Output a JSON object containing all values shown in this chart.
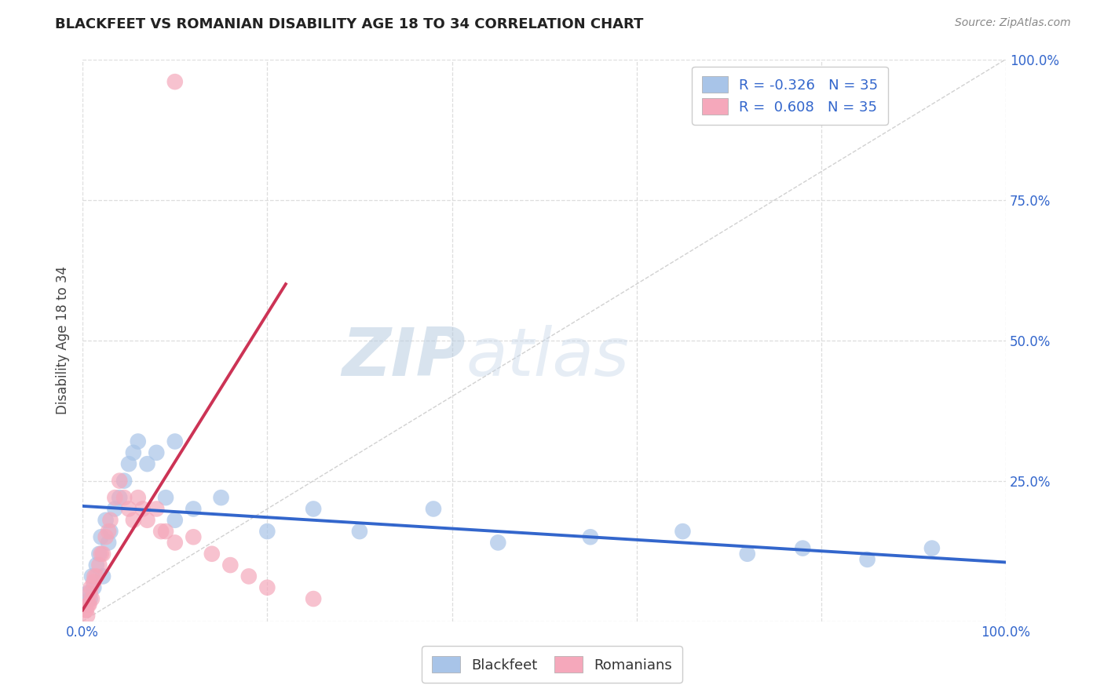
{
  "title": "BLACKFEET VS ROMANIAN DISABILITY AGE 18 TO 34 CORRELATION CHART",
  "source_text": "Source: ZipAtlas.com",
  "ylabel": "Disability Age 18 to 34",
  "blackfeet_R": -0.326,
  "blackfeet_N": 35,
  "romanian_R": 0.608,
  "romanian_N": 35,
  "blackfeet_color": "#a8c4e8",
  "romanian_color": "#f5a8bb",
  "blackfeet_line_color": "#3366cc",
  "romanian_line_color": "#cc3355",
  "ref_line_color": "#cccccc",
  "grid_color": "#dddddd",
  "watermark_zip": "ZIP",
  "watermark_atlas": "atlas",
  "xlim": [
    0,
    100
  ],
  "ylim": [
    0,
    100
  ],
  "blackfeet_x": [
    0.5,
    0.8,
    1.0,
    1.2,
    1.5,
    1.8,
    2.0,
    2.2,
    2.5,
    2.8,
    3.0,
    3.5,
    4.0,
    4.5,
    5.0,
    5.5,
    6.0,
    7.0,
    8.0,
    9.0,
    10.0,
    12.0,
    15.0,
    20.0,
    25.0,
    30.0,
    38.0,
    45.0,
    55.0,
    65.0,
    72.0,
    78.0,
    85.0,
    92.0,
    10.0
  ],
  "blackfeet_y": [
    5.0,
    4.0,
    8.0,
    6.0,
    10.0,
    12.0,
    15.0,
    8.0,
    18.0,
    14.0,
    16.0,
    20.0,
    22.0,
    25.0,
    28.0,
    30.0,
    32.0,
    28.0,
    30.0,
    22.0,
    18.0,
    20.0,
    22.0,
    16.0,
    20.0,
    16.0,
    20.0,
    14.0,
    15.0,
    16.0,
    12.0,
    13.0,
    11.0,
    13.0,
    32.0
  ],
  "romanian_x": [
    0.3,
    0.5,
    0.6,
    0.8,
    1.0,
    1.2,
    1.5,
    1.8,
    2.0,
    2.5,
    3.0,
    3.5,
    4.0,
    5.0,
    6.0,
    7.0,
    8.0,
    9.0,
    10.0,
    12.0,
    14.0,
    16.0,
    18.0,
    20.0,
    25.0,
    0.4,
    0.7,
    0.9,
    1.3,
    2.2,
    2.8,
    4.5,
    5.5,
    6.5,
    8.5
  ],
  "romanian_y": [
    2.0,
    1.0,
    3.0,
    5.0,
    4.0,
    7.0,
    8.0,
    10.0,
    12.0,
    15.0,
    18.0,
    22.0,
    25.0,
    20.0,
    22.0,
    18.0,
    20.0,
    16.0,
    14.0,
    15.0,
    12.0,
    10.0,
    8.0,
    6.0,
    4.0,
    2.0,
    3.0,
    6.0,
    8.0,
    12.0,
    16.0,
    22.0,
    18.0,
    20.0,
    16.0
  ],
  "romanian_outlier_x": 10.0,
  "romanian_outlier_y": 96.0,
  "blue_trend_x0": 0,
  "blue_trend_y0": 20.5,
  "blue_trend_x1": 100,
  "blue_trend_y1": 10.5,
  "pink_trend_x0": 0,
  "pink_trend_y0": 2.0,
  "pink_trend_x1": 22,
  "pink_trend_y1": 60.0
}
